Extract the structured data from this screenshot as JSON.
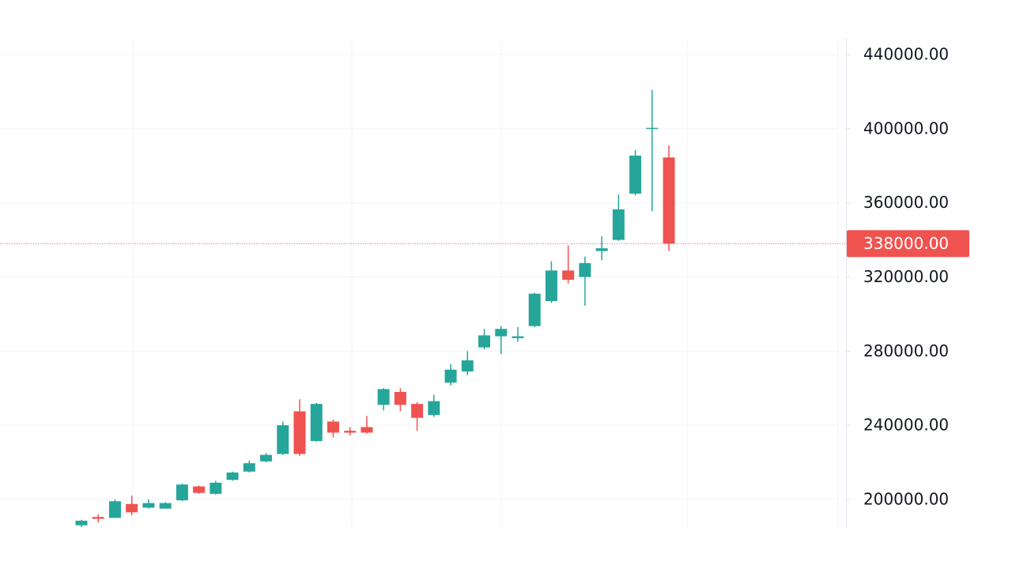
{
  "chart_data": {
    "type": "candlestick",
    "up_color": "#26a69a",
    "down_color": "#ef5350",
    "open": [
      186000,
      190500,
      190000,
      197500,
      195500,
      195000,
      199500,
      207000,
      203000,
      210500,
      215000,
      220500,
      224500,
      247500,
      231500,
      242000,
      237000,
      239000,
      251000,
      258000,
      251500,
      245500,
      263000,
      269000,
      282000,
      288000,
      287000,
      293500,
      307000,
      323500,
      320000,
      334000,
      340000,
      365000,
      400000,
      384500
    ],
    "high": [
      189000,
      192000,
      200000,
      202000,
      200000,
      198500,
      208500,
      207500,
      210000,
      215000,
      221000,
      225000,
      242000,
      254000,
      252000,
      243000,
      239000,
      245000,
      260000,
      260000,
      252500,
      256500,
      273000,
      280000,
      292000,
      293500,
      293000,
      311500,
      328500,
      337000,
      331000,
      342000,
      364500,
      388500,
      421000,
      391000
    ],
    "low": [
      185000,
      187500,
      190000,
      191500,
      195000,
      195000,
      199000,
      203000,
      202500,
      210000,
      214500,
      220000,
      224000,
      223500,
      231000,
      233500,
      234500,
      235500,
      248000,
      247500,
      237000,
      244500,
      261500,
      267000,
      281000,
      278500,
      285000,
      293000,
      306000,
      316500,
      304500,
      329000,
      339500,
      364000,
      355500,
      334000
    ],
    "close": [
      188500,
      189500,
      199000,
      193000,
      198000,
      198000,
      208000,
      203500,
      209000,
      214500,
      219500,
      224000,
      240000,
      224500,
      251500,
      236000,
      236000,
      236000,
      259500,
      251000,
      244000,
      253000,
      270000,
      275000,
      288500,
      292000,
      288000,
      311000,
      323500,
      318500,
      327500,
      335500,
      356500,
      385500,
      400500,
      338000
    ],
    "ylim": [
      184600,
      449000
    ],
    "yticks": [
      {
        "value": 200000,
        "label": "200000.00"
      },
      {
        "value": 240000,
        "label": "240000.00"
      },
      {
        "value": 280000,
        "label": "280000.00"
      },
      {
        "value": 320000,
        "label": "320000.00"
      },
      {
        "value": 360000,
        "label": "360000.00"
      },
      {
        "value": 400000,
        "label": "400000.00"
      },
      {
        "value": 440000,
        "label": "440000.00"
      }
    ],
    "last_price": {
      "value": 338000,
      "label": "338000.00"
    },
    "last_price_color": "#ef5350",
    "grid": true
  }
}
